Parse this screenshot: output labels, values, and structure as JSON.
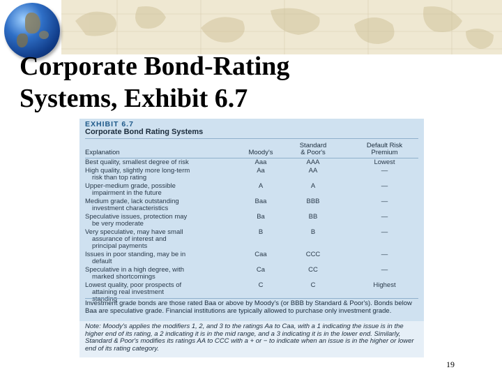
{
  "slide": {
    "title_line1": "Corporate Bond-Rating",
    "title_line2": "Systems, Exhibit 6.7",
    "page_number": "19"
  },
  "exhibit": {
    "label": "EXHIBIT 6.7",
    "title": "Corporate Bond Rating Systems",
    "columns": {
      "explanation": "Explanation",
      "moodys": "Moody's",
      "sp_line1": "Standard",
      "sp_line2": "& Poor's",
      "default_line1": "Default Risk",
      "default_line2": "Premium"
    },
    "rows": [
      {
        "expl": [
          "Best quality, smallest degree of risk"
        ],
        "moodys": "Aaa",
        "sp": "AAA",
        "premium": "Lowest"
      },
      {
        "expl": [
          "High quality, slightly more long-term",
          "risk than top rating"
        ],
        "moodys": "Aa",
        "sp": "AA",
        "premium": "—"
      },
      {
        "expl": [
          "Upper-medium grade, possible",
          "impairment in the future"
        ],
        "moodys": "A",
        "sp": "A",
        "premium": "—"
      },
      {
        "expl": [
          "Medium grade, lack outstanding",
          "investment characteristics"
        ],
        "moodys": "Baa",
        "sp": "BBB",
        "premium": "—"
      },
      {
        "expl": [
          "Speculative issues, protection may",
          "be very moderate"
        ],
        "moodys": "Ba",
        "sp": "BB",
        "premium": "—"
      },
      {
        "expl": [
          "Very speculative, may have small",
          "assurance of interest and",
          "principal payments"
        ],
        "moodys": "B",
        "sp": "B",
        "premium": "—"
      },
      {
        "expl": [
          "Issues in poor standing, may be in",
          "default"
        ],
        "moodys": "Caa",
        "sp": "CCC",
        "premium": "—"
      },
      {
        "expl": [
          "Speculative in a high degree, with",
          "marked shortcomings"
        ],
        "moodys": "Ca",
        "sp": "CC",
        "premium": "—"
      },
      {
        "expl": [
          "Lowest quality, poor prospects of",
          "attaining real investment",
          "standing"
        ],
        "moodys": "C",
        "sp": "C",
        "premium": "Highest"
      }
    ],
    "footnote": "Investment grade bonds are those rated Baa or above by Moody's (or BBB by Standard & Poor's). Bonds below Baa are speculative grade. Financial institutions are typically allowed to purchase only investment grade.",
    "note_label": "Note:",
    "note": "Moody's applies the modifiers 1, 2, and 3 to the ratings Aa to Caa, with a 1 indicating the issue is in the higher end of its rating, a 2 indicating it is in the mid range, and a 3 indicating it is in the lower end. Similarly, Standard & Poor's modifies its ratings AA to CCC with a + or − to indicate when an issue is in the higher or lower end of its rating category."
  }
}
